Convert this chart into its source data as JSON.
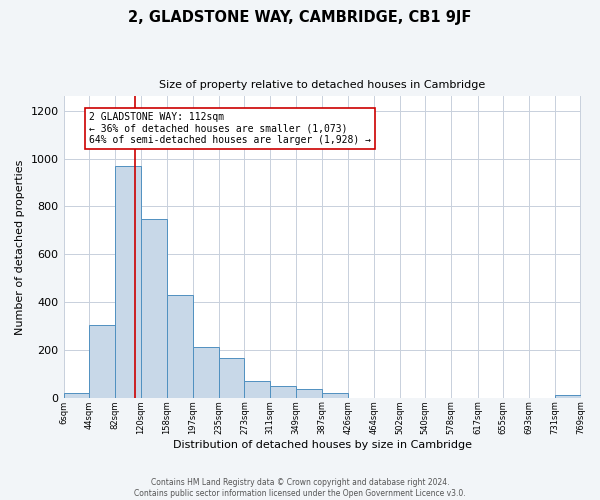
{
  "title": "2, GLADSTONE WAY, CAMBRIDGE, CB1 9JF",
  "subtitle": "Size of property relative to detached houses in Cambridge",
  "xlabel": "Distribution of detached houses by size in Cambridge",
  "ylabel": "Number of detached properties",
  "bin_edges": [
    6,
    44,
    82,
    120,
    158,
    197,
    235,
    273,
    311,
    349,
    387,
    426,
    464,
    502,
    540,
    578,
    617,
    655,
    693,
    731,
    769
  ],
  "bin_labels": [
    "6sqm",
    "44sqm",
    "82sqm",
    "120sqm",
    "158sqm",
    "197sqm",
    "235sqm",
    "273sqm",
    "311sqm",
    "349sqm",
    "387sqm",
    "426sqm",
    "464sqm",
    "502sqm",
    "540sqm",
    "578sqm",
    "617sqm",
    "655sqm",
    "693sqm",
    "731sqm",
    "769sqm"
  ],
  "counts": [
    20,
    305,
    970,
    745,
    430,
    210,
    165,
    70,
    48,
    35,
    18,
    0,
    0,
    0,
    0,
    0,
    0,
    0,
    0,
    12
  ],
  "bar_color": "#c8d8e8",
  "bar_edge_color": "#5090c0",
  "vline_x": 112,
  "vline_color": "#cc0000",
  "annotation_text": "2 GLADSTONE WAY: 112sqm\n← 36% of detached houses are smaller (1,073)\n64% of semi-detached houses are larger (1,928) →",
  "annotation_box_color": "#ffffff",
  "annotation_box_edge_color": "#cc0000",
  "ylim": [
    0,
    1260
  ],
  "yticks": [
    0,
    200,
    400,
    600,
    800,
    1000,
    1200
  ],
  "footer1": "Contains HM Land Registry data © Crown copyright and database right 2024.",
  "footer2": "Contains public sector information licensed under the Open Government Licence v3.0.",
  "bg_color": "#f2f5f8",
  "plot_bg_color": "#ffffff",
  "grid_color": "#c8d0dc"
}
